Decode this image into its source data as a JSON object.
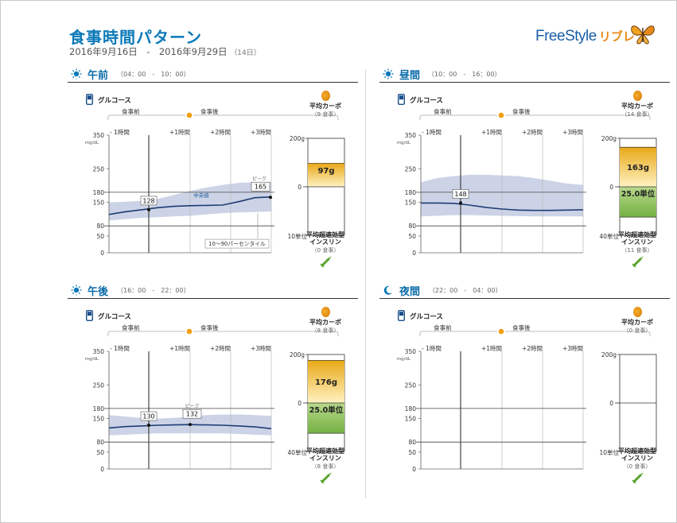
{
  "header": {
    "title": "食事時間パターン",
    "date_range": "2016年9月16日　-　2016年9月29日",
    "days": "（14日）",
    "logo_text": "FreeStyle",
    "logo_sub": "リブレ"
  },
  "labels": {
    "glucose": "グルコース",
    "before_meal": "食事前",
    "after_meal": "食事後",
    "offsets": [
      "- 1時間",
      "+1時間",
      "+2時間",
      "+3時間"
    ],
    "unit": "mg/dL",
    "y_ticks": [
      "350",
      "250",
      "180",
      "150",
      "80",
      "50",
      "0"
    ],
    "avg_carb": "平均カーボ",
    "avg_insulin": "平均超速効型",
    "insulin_line2": "インスリン",
    "median": "中央値",
    "peak": "ピーク",
    "percentile": "10～90パーセンタイル"
  },
  "colors": {
    "accent": "#0b79b8",
    "median_line": "#1f3c73",
    "band": "#ccd3e6",
    "carb_top": "#e8a817",
    "carb_bottom": "#fff2c2",
    "insulin_top": "#b8d98a",
    "insulin_bottom": "#74b043"
  },
  "panels": [
    {
      "name": "午前",
      "icon": "sunrise-icon",
      "time_range": "（04：00　-　10：00）",
      "carb_meals": "（9 食事）",
      "insulin_meals": "（0 食事）",
      "carb_scale_top": "200g",
      "carb_scale_mid": "0",
      "insulin_scale_bottom": "10単位",
      "carb_value": 97,
      "carb_label": "97g",
      "insulin_value": 0,
      "insulin_label": "",
      "meal_value": 128,
      "meal_label": "128",
      "peak_value": 165,
      "peak_label": "165",
      "show_annotations": true,
      "median": [
        [
          0,
          114
        ],
        [
          20,
          122
        ],
        [
          40,
          128
        ],
        [
          60,
          134
        ],
        [
          80,
          138
        ],
        [
          100,
          140
        ],
        [
          120,
          141
        ],
        [
          140,
          142
        ],
        [
          160,
          152
        ],
        [
          180,
          164
        ],
        [
          200,
          166
        ]
      ],
      "p10": [
        [
          0,
          96
        ],
        [
          20,
          100
        ],
        [
          40,
          104
        ],
        [
          60,
          106
        ],
        [
          80,
          108
        ],
        [
          100,
          110
        ],
        [
          120,
          114
        ],
        [
          140,
          118
        ],
        [
          160,
          120
        ],
        [
          180,
          121
        ],
        [
          200,
          123
        ]
      ],
      "p90": [
        [
          0,
          150
        ],
        [
          20,
          152
        ],
        [
          40,
          154
        ],
        [
          60,
          160
        ],
        [
          80,
          172
        ],
        [
          100,
          184
        ],
        [
          120,
          194
        ],
        [
          140,
          202
        ],
        [
          160,
          208
        ],
        [
          180,
          210
        ],
        [
          200,
          211
        ]
      ]
    },
    {
      "name": "昼間",
      "icon": "sun-icon",
      "time_range": "（10：00　-　16：00）",
      "carb_meals": "（14 食事）",
      "insulin_meals": "（11 食事）",
      "carb_scale_top": "200g",
      "carb_scale_mid": "0",
      "insulin_scale_bottom": "40単位",
      "carb_value": 163,
      "carb_label": "163g",
      "insulin_value": 25,
      "insulin_label": "25.0単位",
      "meal_value": 148,
      "meal_label": "148",
      "peak_value": null,
      "peak_label": "",
      "show_annotations": false,
      "median": [
        [
          0,
          148
        ],
        [
          20,
          148
        ],
        [
          40,
          147
        ],
        [
          60,
          142
        ],
        [
          80,
          135
        ],
        [
          100,
          130
        ],
        [
          120,
          127
        ],
        [
          140,
          126
        ],
        [
          160,
          126
        ],
        [
          180,
          127
        ],
        [
          200,
          128
        ]
      ],
      "p10": [
        [
          0,
          108
        ],
        [
          20,
          110
        ],
        [
          40,
          112
        ],
        [
          60,
          112
        ],
        [
          80,
          111
        ],
        [
          100,
          110
        ],
        [
          120,
          109
        ],
        [
          140,
          108
        ],
        [
          160,
          108
        ],
        [
          180,
          108
        ],
        [
          200,
          108
        ]
      ],
      "p90": [
        [
          0,
          210
        ],
        [
          20,
          222
        ],
        [
          40,
          228
        ],
        [
          60,
          232
        ],
        [
          80,
          232
        ],
        [
          100,
          230
        ],
        [
          120,
          228
        ],
        [
          140,
          222
        ],
        [
          160,
          214
        ],
        [
          180,
          206
        ],
        [
          200,
          202
        ]
      ]
    },
    {
      "name": "午後",
      "icon": "sunset-icon",
      "time_range": "（16：00　-　22：00）",
      "carb_meals": "（8 食事）",
      "insulin_meals": "（8 食事）",
      "carb_scale_top": "200g",
      "carb_scale_mid": "0",
      "insulin_scale_bottom": "40単位",
      "carb_value": 176,
      "carb_label": "176g",
      "insulin_value": 25,
      "insulin_label": "25.0単位",
      "meal_value": 130,
      "meal_label": "130",
      "peak_value": 132,
      "peak_label": "132",
      "show_annotations": false,
      "median": [
        [
          0,
          122
        ],
        [
          20,
          126
        ],
        [
          40,
          128
        ],
        [
          60,
          130
        ],
        [
          80,
          131
        ],
        [
          100,
          132
        ],
        [
          120,
          131
        ],
        [
          140,
          130
        ],
        [
          160,
          128
        ],
        [
          180,
          125
        ],
        [
          200,
          120
        ]
      ],
      "p10": [
        [
          0,
          100
        ],
        [
          20,
          102
        ],
        [
          40,
          104
        ],
        [
          60,
          106
        ],
        [
          80,
          106
        ],
        [
          100,
          106
        ],
        [
          120,
          106
        ],
        [
          140,
          106
        ],
        [
          160,
          104
        ],
        [
          180,
          102
        ],
        [
          200,
          100
        ]
      ],
      "p90": [
        [
          0,
          160
        ],
        [
          20,
          156
        ],
        [
          40,
          152
        ],
        [
          60,
          150
        ],
        [
          80,
          152
        ],
        [
          100,
          156
        ],
        [
          120,
          160
        ],
        [
          140,
          162
        ],
        [
          160,
          162
        ],
        [
          180,
          160
        ],
        [
          200,
          158
        ]
      ]
    },
    {
      "name": "夜間",
      "icon": "moon-icon",
      "time_range": "（22：00　-　04：00）",
      "carb_meals": "（0 食事）",
      "insulin_meals": "（0 食事）",
      "carb_scale_top": "200g",
      "carb_scale_mid": "0",
      "insulin_scale_bottom": "10単位",
      "carb_value": 0,
      "carb_label": "",
      "insulin_value": 0,
      "insulin_label": "",
      "meal_value": null,
      "meal_label": "",
      "peak_value": null,
      "peak_label": "",
      "show_annotations": false,
      "median": [],
      "p10": [],
      "p90": []
    }
  ],
  "chart_data": [
    {
      "type": "line",
      "title": "午前",
      "x_unit": "minutes from -1時間",
      "ylim": [
        0,
        350
      ],
      "series": [
        {
          "name": "中央値",
          "x": [
            0,
            20,
            40,
            60,
            80,
            100,
            120,
            140,
            160,
            180,
            200
          ],
          "y": [
            114,
            122,
            128,
            134,
            138,
            140,
            141,
            142,
            152,
            164,
            166
          ]
        }
      ]
    },
    {
      "type": "line",
      "title": "昼間",
      "ylim": [
        0,
        350
      ],
      "series": [
        {
          "x": [
            0,
            20,
            40,
            60,
            80,
            100,
            120,
            140,
            160,
            180,
            200
          ],
          "y": [
            148,
            148,
            147,
            142,
            135,
            130,
            127,
            126,
            126,
            127,
            128
          ]
        }
      ]
    },
    {
      "type": "line",
      "title": "午後",
      "ylim": [
        0,
        350
      ],
      "series": [
        {
          "x": [
            0,
            20,
            40,
            60,
            80,
            100,
            120,
            140,
            160,
            180,
            200
          ],
          "y": [
            122,
            126,
            128,
            130,
            131,
            132,
            131,
            130,
            128,
            125,
            120
          ]
        }
      ]
    },
    {
      "type": "line",
      "title": "夜間",
      "ylim": [
        0,
        350
      ],
      "series": []
    }
  ]
}
